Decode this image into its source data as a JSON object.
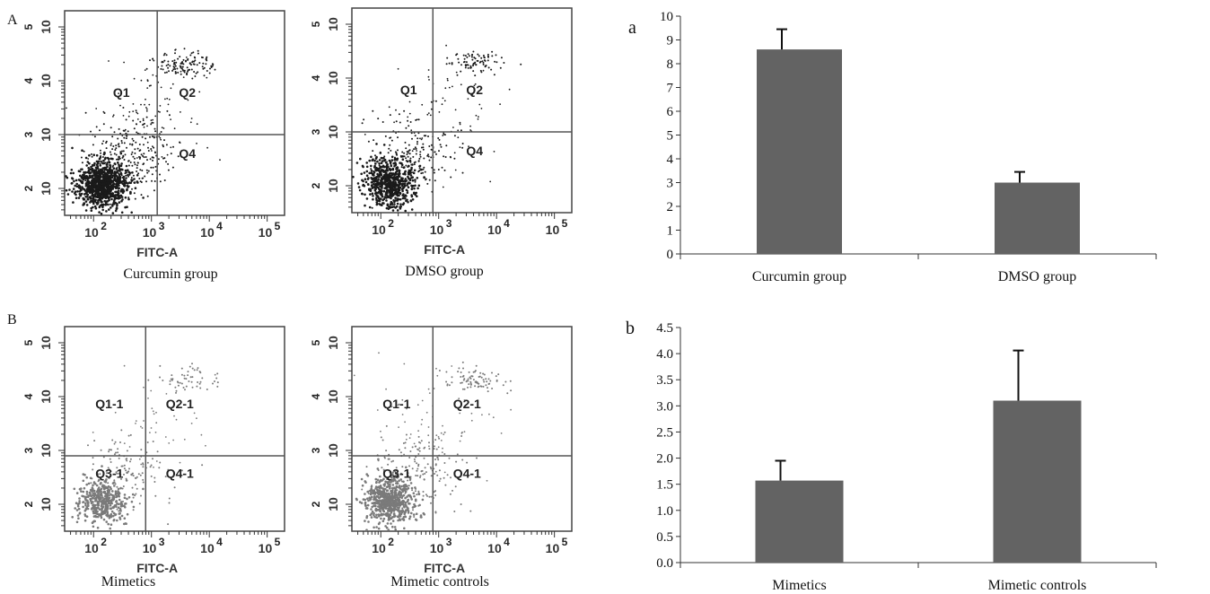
{
  "panels": {
    "A": "A",
    "B": "B",
    "a": "a",
    "b": "b"
  },
  "flow_plots": [
    {
      "id": "curcumin",
      "caption": "Curcumin group",
      "x_axis_label": "FITC-A",
      "x_ticks": [
        "2",
        "3",
        "4",
        "5"
      ],
      "y_ticks": [
        "2",
        "3",
        "4",
        "5"
      ],
      "tick_base": "10",
      "gate_x": 3.1,
      "gate_y": 3.0,
      "quadrant_labels": [
        "Q1",
        "Q2",
        "Q4"
      ],
      "dot_color": "#1a1a1a",
      "dot_density": "high"
    },
    {
      "id": "dmso",
      "caption": "DMSO group",
      "x_axis_label": "FITC-A",
      "x_ticks": [
        "2",
        "3",
        "4",
        "5"
      ],
      "y_ticks": [
        "2",
        "3",
        "4",
        "5"
      ],
      "tick_base": "10",
      "gate_x": 2.9,
      "gate_y": 3.0,
      "quadrant_labels": [
        "Q1",
        "Q2",
        "Q4"
      ],
      "dot_color": "#1a1a1a",
      "dot_density": "medium"
    },
    {
      "id": "mimetics",
      "caption": "Mimetics",
      "x_axis_label": "FITC-A",
      "x_ticks": [
        "2",
        "3",
        "4",
        "5"
      ],
      "y_ticks": [
        "2",
        "3",
        "4",
        "5"
      ],
      "tick_base": "10",
      "gate_x": 2.9,
      "gate_y": 2.9,
      "quadrant_labels": [
        "Q1-1",
        "Q2-1",
        "Q3-1",
        "Q4-1"
      ],
      "dot_color": "#7a7a7a",
      "dot_density": "low"
    },
    {
      "id": "mimetic-controls",
      "caption": "Mimetic controls",
      "x_axis_label": "FITC-A",
      "x_ticks": [
        "2",
        "3",
        "4",
        "5"
      ],
      "y_ticks": [
        "2",
        "3",
        "4",
        "5"
      ],
      "tick_base": "10",
      "gate_x": 2.9,
      "gate_y": 2.9,
      "quadrant_labels": [
        "Q1-1",
        "Q2-1",
        "Q3-1",
        "Q4-1"
      ],
      "dot_color": "#7a7a7a",
      "dot_density": "medium"
    }
  ],
  "chart_data": [
    {
      "type": "bar",
      "panel": "a",
      "categories": [
        "Curcumin group",
        "DMSO group"
      ],
      "values": [
        8.6,
        3.0
      ],
      "errors": [
        0.85,
        0.45
      ],
      "ylim": [
        0,
        10
      ],
      "yticks": [
        "0",
        "1",
        "2",
        "3",
        "4",
        "5",
        "6",
        "7",
        "8",
        "9",
        "10"
      ],
      "bar_color": "#636363",
      "grid": false
    },
    {
      "type": "bar",
      "panel": "b",
      "categories": [
        "Mimetics",
        "Mimetic controls"
      ],
      "values": [
        1.57,
        3.1
      ],
      "errors": [
        0.38,
        0.96
      ],
      "ylim": [
        0,
        4.5
      ],
      "yticks": [
        "0.0",
        "0.5",
        "1.0",
        "1.5",
        "2.0",
        "2.5",
        "3.0",
        "3.5",
        "4.0",
        "4.5"
      ],
      "bar_color": "#636363",
      "grid": false
    }
  ]
}
